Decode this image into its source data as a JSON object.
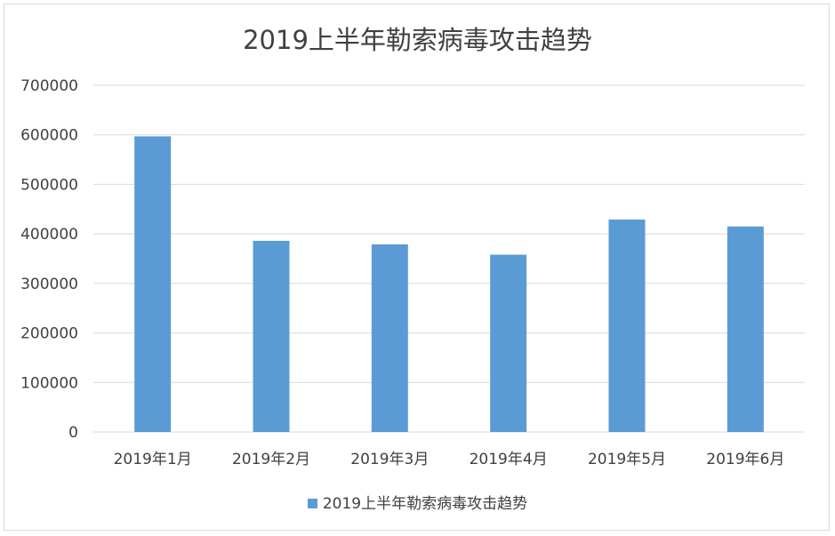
{
  "chart_data": {
    "type": "bar",
    "title": "2019上半年勒索病毒攻击趋势",
    "categories": [
      "2019年1月",
      "2019年2月",
      "2019年3月",
      "2019年4月",
      "2019年5月",
      "2019年6月"
    ],
    "series": [
      {
        "name": "2019上半年勒索病毒攻击趋势",
        "values": [
          597000,
          386000,
          379000,
          358000,
          429000,
          415000
        ]
      }
    ],
    "yticks": [
      "0",
      "100000",
      "200000",
      "300000",
      "400000",
      "500000",
      "600000",
      "700000"
    ],
    "ylim": [
      0,
      700000
    ],
    "xlabel": "",
    "ylabel": "",
    "grid": true,
    "legend_position": "bottom",
    "bar_color": "#5b9bd5",
    "grid_color": "#d9d9d9"
  }
}
